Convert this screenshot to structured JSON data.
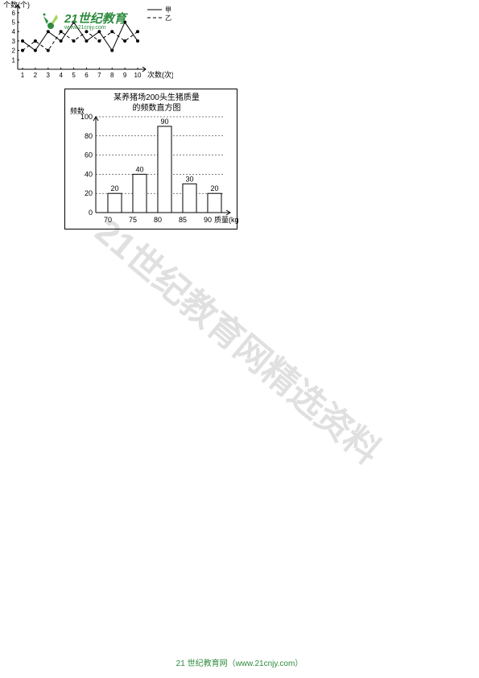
{
  "logo": {
    "brand": "21世纪教育",
    "sub": "www.21cnjy.com"
  },
  "footer": {
    "text": "21 世纪教育网（www.21cnjy.com）"
  },
  "watermark": {
    "text": "21世纪教育网精选资料"
  },
  "chart1": {
    "type": "bar",
    "title_line1": "某养猪场200头生猪质量",
    "title_line2": "的频数直方图",
    "ylabel": "频数",
    "xlabel": "质量(kg)",
    "categories": [
      "70",
      "75",
      "80",
      "85",
      "90"
    ],
    "values": [
      20,
      40,
      90,
      30,
      20
    ],
    "value_labels": [
      "20",
      "40",
      "90",
      "30",
      "20"
    ],
    "yticks": [
      0,
      20,
      40,
      60,
      80,
      100
    ],
    "bar_color": "#ffffff",
    "bar_border": "#000000",
    "grid_color": "#000000",
    "axis_color": "#000000",
    "title_fontsize": 10,
    "tick_fontsize": 9,
    "bar_width": 0.55,
    "ylim": [
      0,
      100
    ]
  },
  "chart2": {
    "type": "line",
    "ylabel": "个数(个)",
    "xlabel": "次数(次)",
    "xticks": [
      1,
      2,
      3,
      4,
      5,
      6,
      7,
      8,
      9,
      10
    ],
    "yticks": [
      1,
      2,
      3,
      4,
      5,
      6
    ],
    "ylim": [
      0,
      6.5
    ],
    "series": [
      {
        "name": "甲",
        "color": "#000000",
        "dash": "none",
        "marker": "circle",
        "values": [
          3,
          2,
          4,
          3,
          5,
          3,
          4,
          2,
          5,
          3
        ]
      },
      {
        "name": "乙",
        "color": "#000000",
        "dash": "4,3",
        "marker": "circle",
        "values": [
          2,
          3,
          2,
          4,
          3,
          4,
          3,
          4,
          3,
          4
        ]
      }
    ],
    "legend_pos": "top-right",
    "axis_color": "#000000",
    "tick_fontsize": 8,
    "label_fontsize": 9
  }
}
